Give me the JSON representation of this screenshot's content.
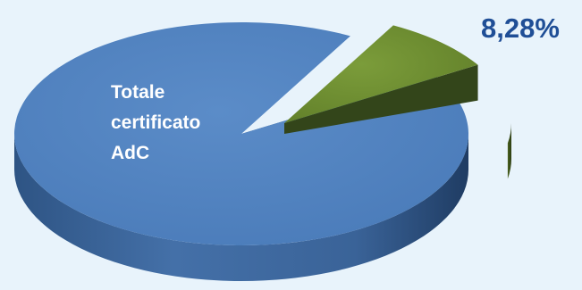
{
  "chart_data": {
    "type": "pie",
    "style": "3d-exploded",
    "slices": [
      {
        "label": "Totale certificato AdC",
        "label_lines": [
          "Totale",
          "certificato",
          "AdC"
        ],
        "value": 91.72,
        "color": "#4f81bd"
      },
      {
        "label": "",
        "value": 8.28,
        "display": "8,28%",
        "color": "#6b8a2f",
        "exploded": true
      }
    ]
  },
  "colors": {
    "background": "#e8f3fb",
    "label_text": "#ffffff",
    "value_text": "#1f4e96"
  }
}
